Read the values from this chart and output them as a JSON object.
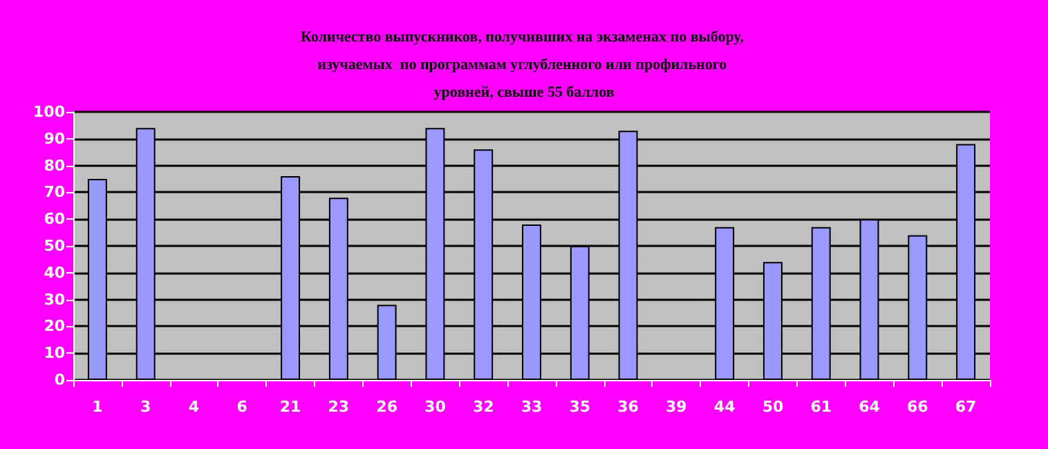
{
  "chart_data": {
    "type": "bar",
    "title": "Количество выпускников, получивших на экзаменах по выбору, изучаемых  по программам углубленного или профильного уровней, свыше 55 баллов",
    "categories": [
      "1",
      "3",
      "4",
      "6",
      "21",
      "23",
      "26",
      "30",
      "32",
      "33",
      "35",
      "36",
      "39",
      "44",
      "50",
      "61",
      "64",
      "66",
      "67"
    ],
    "values": [
      75,
      94,
      null,
      null,
      76,
      68,
      28,
      94,
      86,
      58,
      50,
      93,
      null,
      57,
      44,
      57,
      60,
      54,
      88
    ],
    "color": "#9999ff",
    "ylim": [
      0,
      100
    ],
    "yticks": [
      0,
      10,
      20,
      30,
      40,
      50,
      60,
      70,
      80,
      90,
      100
    ],
    "grid": "y"
  }
}
